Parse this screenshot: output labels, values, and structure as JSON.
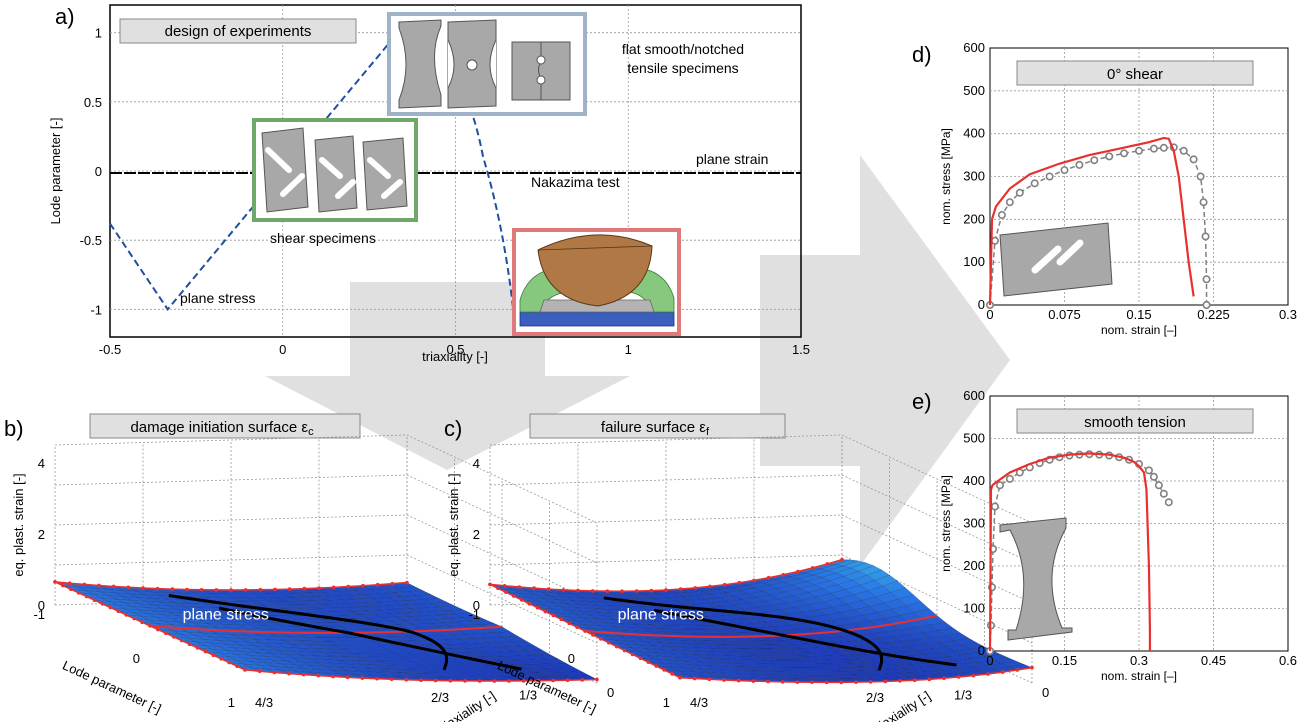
{
  "colors": {
    "simulation": "#e8312f",
    "experiment": "#808080",
    "dashed_path": "#1f4fa0",
    "shear_box": "#6fa86a",
    "tensile_box": "#9fb3c8",
    "nakazima_box": "#e07a7a"
  },
  "chart_data": [
    {
      "id": "a",
      "type": "line",
      "panel_label": "a)",
      "title": "design of experiments",
      "xlabel": "triaxiality [-]",
      "ylabel": "Lode parameter [-]",
      "xlim": [
        -0.5,
        1.5
      ],
      "ylim": [
        -1.2,
        1.2
      ],
      "xticks": [
        "-0.5",
        "0",
        "0.5",
        "1",
        "1.5"
      ],
      "yticks": [
        "-1",
        "-0.5",
        "0",
        "0.5",
        "1"
      ],
      "series": [
        {
          "x": [
            -0.5,
            -0.333,
            0.333,
            0.45,
            0.55,
            0.6,
            0.65,
            0.667
          ],
          "y": [
            -0.38,
            -1,
            1,
            0.62,
            0.18,
            -0.1,
            -0.5,
            -1
          ]
        }
      ],
      "annotations": {
        "plane_strain": "plane strain",
        "plane_stress": "plane stress",
        "shear": "shear specimens",
        "tensile": "flat smooth/notched\ntensile specimens",
        "nakazima": "Nakazima test"
      }
    },
    {
      "id": "b",
      "type": "surface",
      "panel_label": "b)",
      "title": "damage initiation surface ε",
      "title_sub": "c",
      "zlabel": "eq. plast. strain [-]",
      "xlabel": "Lode parameter [-]",
      "ylabel": "triaxiality [-]",
      "zticks": [
        "0",
        "2",
        "4"
      ],
      "xticks": [
        "-1",
        "0",
        "1"
      ],
      "yticks": [
        "0",
        "1/3",
        "2/3",
        "4/3"
      ],
      "annotation": "plane stress"
    },
    {
      "id": "c",
      "type": "surface",
      "panel_label": "c)",
      "title": "failure surface ε",
      "title_sub": "f",
      "zlabel": "eq. plast. strain [-]",
      "xlabel": "Lode parameter [-]",
      "ylabel": "triaxiality [-]",
      "zticks": [
        "0",
        "2",
        "4"
      ],
      "xticks": [
        "-1",
        "0",
        "1"
      ],
      "yticks": [
        "0",
        "1/3",
        "2/3",
        "4/3"
      ],
      "annotation": "plane stress"
    },
    {
      "id": "d",
      "type": "line",
      "panel_label": "d)",
      "title": "0° shear",
      "xlabel": "nom. strain [–]",
      "ylabel": "nom. stress [MPa]",
      "xlim": [
        0,
        0.3
      ],
      "ylim": [
        0,
        600
      ],
      "xticks": [
        "0",
        "0.075",
        "0.15",
        "0.225",
        "0.3"
      ],
      "yticks": [
        "0",
        "100",
        "200",
        "300",
        "400",
        "500",
        "600"
      ],
      "simulation": {
        "x": [
          0,
          0.002,
          0.006,
          0.02,
          0.04,
          0.07,
          0.1,
          0.13,
          0.16,
          0.175,
          0.18,
          0.185,
          0.19,
          0.195,
          0.2,
          0.205
        ],
        "y": [
          0,
          200,
          230,
          272,
          305,
          330,
          350,
          365,
          380,
          390,
          388,
          360,
          300,
          200,
          100,
          20
        ]
      },
      "experiment": {
        "x": [
          0.0,
          0.005,
          0.012,
          0.02,
          0.03,
          0.045,
          0.06,
          0.075,
          0.09,
          0.105,
          0.12,
          0.135,
          0.15,
          0.165,
          0.175,
          0.185,
          0.195,
          0.205,
          0.212,
          0.215,
          0.217,
          0.218,
          0.218
        ],
        "y": [
          0,
          150,
          210,
          240,
          262,
          284,
          300,
          315,
          327,
          338,
          347,
          354,
          360,
          365,
          367,
          368,
          360,
          340,
          300,
          240,
          160,
          60,
          0
        ]
      }
    },
    {
      "id": "e",
      "type": "line",
      "panel_label": "e)",
      "title": "smooth tension",
      "xlabel": "nom. strain [–]",
      "ylabel": "nom. stress [MPa]",
      "xlim": [
        0,
        0.6
      ],
      "ylim": [
        0,
        600
      ],
      "xticks": [
        "0",
        "0.15",
        "0.3",
        "0.45",
        "0.6"
      ],
      "yticks": [
        "0",
        "100",
        "200",
        "300",
        "400",
        "500",
        "600"
      ],
      "simulation": {
        "x": [
          0,
          0.002,
          0.005,
          0.01,
          0.04,
          0.08,
          0.12,
          0.16,
          0.2,
          0.24,
          0.27,
          0.29,
          0.3,
          0.31,
          0.315,
          0.32,
          0.322,
          0.322
        ],
        "y": [
          0,
          380,
          390,
          395,
          420,
          440,
          455,
          462,
          465,
          462,
          455,
          445,
          435,
          420,
          380,
          200,
          50,
          0
        ]
      },
      "experiment": {
        "x": [
          0.0,
          0.002,
          0.004,
          0.006,
          0.01,
          0.02,
          0.04,
          0.06,
          0.08,
          0.1,
          0.12,
          0.14,
          0.16,
          0.18,
          0.2,
          0.22,
          0.24,
          0.26,
          0.28,
          0.3,
          0.32,
          0.33,
          0.34,
          0.35,
          0.36
        ],
        "y": [
          0,
          60,
          150,
          240,
          340,
          390,
          405,
          420,
          432,
          442,
          450,
          456,
          460,
          462,
          463,
          462,
          460,
          456,
          450,
          440,
          425,
          410,
          390,
          370,
          350
        ]
      }
    }
  ]
}
